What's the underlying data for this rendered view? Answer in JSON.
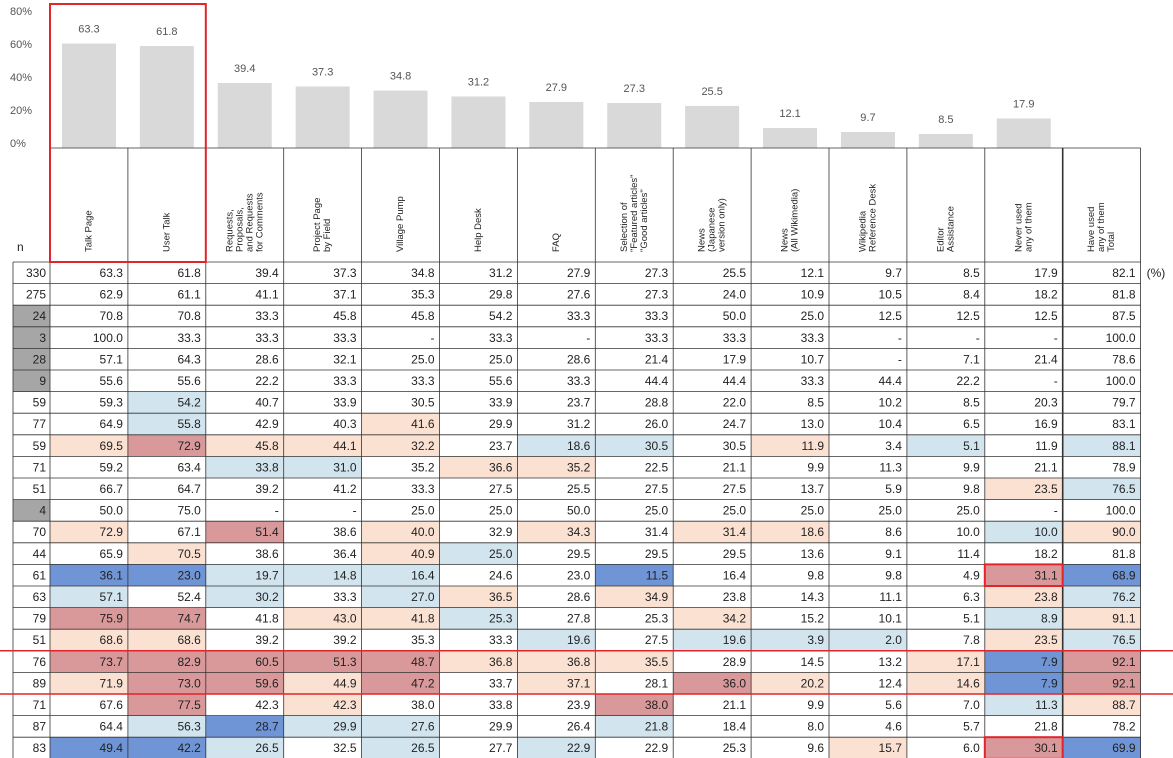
{
  "chart_data": {
    "type": "bar",
    "values": [
      63.3,
      61.8,
      39.4,
      37.3,
      34.8,
      31.2,
      27.9,
      27.3,
      25.5,
      12.1,
      9.7,
      8.5,
      17.9
    ],
    "color": "#d9d9d9",
    "ylim": [
      0,
      80
    ],
    "yticks": [
      {
        "value": 0,
        "label": "0%"
      },
      {
        "value": 20,
        "label": "20%"
      },
      {
        "value": 40,
        "label": "40%"
      },
      {
        "value": 60,
        "label": "60%"
      },
      {
        "value": 80,
        "label": "80%"
      }
    ]
  },
  "table": {
    "n_label": "n",
    "unit": "(%)",
    "colors": {
      "p": "#fbe1d2",
      "r": "#d9999a",
      "l": "#d2e5ef",
      "b": "#6f95d6",
      "g": "#a6a6a6"
    },
    "columns": [
      [
        "Talk Page"
      ],
      [
        "User Talk"
      ],
      [
        "Requests,",
        "Proposals,",
        "and Requests",
        "for Comments"
      ],
      [
        "Project Page",
        "by Field"
      ],
      [
        "Village Pump"
      ],
      [
        "Help Desk"
      ],
      [
        "FAQ"
      ],
      [
        "Selection of",
        "\"Featured articles\"",
        "\"Good articles\""
      ],
      [
        "News",
        "(Japanese",
        "version only)"
      ],
      [
        "News",
        "(All Wikimedia)"
      ],
      [
        "Wikipedia",
        "Reference Desk"
      ],
      [
        "Editor",
        "Assistance"
      ],
      [
        "Never used",
        "any of them"
      ],
      [
        "Have used",
        "any of them",
        "Total"
      ]
    ],
    "rows": [
      {
        "n": "330",
        "n_gray": false,
        "shade": "..............",
        "cells": [
          "63.3",
          "61.8",
          "39.4",
          "37.3",
          "34.8",
          "31.2",
          "27.9",
          "27.3",
          "25.5",
          "12.1",
          "9.7",
          "8.5",
          "17.9",
          "82.1"
        ]
      },
      {
        "n": "275",
        "n_gray": false,
        "shade": "..............",
        "cells": [
          "62.9",
          "61.1",
          "41.1",
          "37.1",
          "35.3",
          "29.8",
          "27.6",
          "27.3",
          "24.0",
          "10.9",
          "10.5",
          "8.4",
          "18.2",
          "81.8"
        ]
      },
      {
        "n": "24",
        "n_gray": true,
        "shade": "..............",
        "cells": [
          "70.8",
          "70.8",
          "33.3",
          "45.8",
          "45.8",
          "54.2",
          "33.3",
          "33.3",
          "50.0",
          "25.0",
          "12.5",
          "12.5",
          "12.5",
          "87.5"
        ]
      },
      {
        "n": "3",
        "n_gray": true,
        "shade": "..............",
        "cells": [
          "100.0",
          "33.3",
          "33.3",
          "33.3",
          "-",
          "33.3",
          "-",
          "33.3",
          "33.3",
          "33.3",
          "-",
          "-",
          "-",
          "100.0"
        ]
      },
      {
        "n": "28",
        "n_gray": true,
        "shade": "..............",
        "cells": [
          "57.1",
          "64.3",
          "28.6",
          "32.1",
          "25.0",
          "25.0",
          "28.6",
          "21.4",
          "17.9",
          "10.7",
          "-",
          "7.1",
          "21.4",
          "78.6"
        ]
      },
      {
        "n": "9",
        "n_gray": true,
        "shade": "..............",
        "cells": [
          "55.6",
          "55.6",
          "22.2",
          "33.3",
          "33.3",
          "55.6",
          "33.3",
          "44.4",
          "44.4",
          "33.3",
          "44.4",
          "22.2",
          "-",
          "100.0"
        ]
      },
      {
        "n": "59",
        "n_gray": false,
        "shade": ".l............",
        "cells": [
          "59.3",
          "54.2",
          "40.7",
          "33.9",
          "30.5",
          "33.9",
          "23.7",
          "28.8",
          "22.0",
          "8.5",
          "10.2",
          "8.5",
          "20.3",
          "79.7"
        ]
      },
      {
        "n": "77",
        "n_gray": false,
        "shade": ".l..p.........",
        "cells": [
          "64.9",
          "55.8",
          "42.9",
          "40.3",
          "41.6",
          "29.9",
          "31.2",
          "26.0",
          "24.7",
          "13.0",
          "10.4",
          "6.5",
          "16.9",
          "83.1"
        ]
      },
      {
        "n": "59",
        "n_gray": false,
        "shade": "prppp.ll.p.l.lp",
        "cells": [
          "69.5",
          "72.9",
          "45.8",
          "44.1",
          "32.2",
          "23.7",
          "18.6",
          "30.5",
          "30.5",
          "11.9",
          "3.4",
          "5.1",
          "11.9",
          "88.1"
        ]
      },
      {
        "n": "71",
        "n_gray": false,
        "shade": "..ll.pp.......",
        "cells": [
          "59.2",
          "63.4",
          "33.8",
          "31.0",
          "35.2",
          "36.6",
          "35.2",
          "22.5",
          "21.1",
          "9.9",
          "11.3",
          "9.9",
          "21.1",
          "78.9"
        ]
      },
      {
        "n": "51",
        "n_gray": false,
        "shade": "............pl",
        "cells": [
          "66.7",
          "64.7",
          "39.2",
          "41.2",
          "33.3",
          "27.5",
          "25.5",
          "27.5",
          "27.5",
          "13.7",
          "5.9",
          "9.8",
          "23.5",
          "76.5"
        ]
      },
      {
        "n": "4",
        "n_gray": true,
        "shade": "..............",
        "cells": [
          "50.0",
          "75.0",
          "-",
          "-",
          "25.0",
          "25.0",
          "50.0",
          "25.0",
          "25.0",
          "25.0",
          "25.0",
          "25.0",
          "-",
          "100.0"
        ]
      },
      {
        "n": "70",
        "n_gray": false,
        "shade": "p.r.p.p.pp..lp",
        "cells": [
          "72.9",
          "67.1",
          "51.4",
          "38.6",
          "40.0",
          "32.9",
          "34.3",
          "31.4",
          "31.4",
          "18.6",
          "8.6",
          "10.0",
          "10.0",
          "90.0"
        ]
      },
      {
        "n": "44",
        "n_gray": false,
        "shade": ".p..pl........",
        "cells": [
          "65.9",
          "70.5",
          "38.6",
          "36.4",
          "40.9",
          "25.0",
          "29.5",
          "29.5",
          "29.5",
          "13.6",
          "9.1",
          "11.4",
          "18.2",
          "81.8"
        ]
      },
      {
        "n": "61",
        "n_gray": false,
        "shade": "bblll..b....rb",
        "cells": [
          "36.1",
          "23.0",
          "19.7",
          "14.8",
          "16.4",
          "24.6",
          "23.0",
          "11.5",
          "16.4",
          "9.8",
          "9.8",
          "4.9",
          "31.1",
          "68.9"
        ]
      },
      {
        "n": "63",
        "n_gray": false,
        "shade": "l.l.lp.p....pl",
        "cells": [
          "57.1",
          "52.4",
          "30.2",
          "33.3",
          "27.0",
          "36.5",
          "28.6",
          "34.9",
          "23.8",
          "14.3",
          "11.1",
          "6.3",
          "23.8",
          "76.2"
        ]
      },
      {
        "n": "79",
        "n_gray": false,
        "shade": "rr.ppl..p...lp",
        "cells": [
          "75.9",
          "74.7",
          "41.8",
          "43.0",
          "41.8",
          "25.3",
          "27.8",
          "25.3",
          "34.2",
          "15.2",
          "10.1",
          "5.1",
          "8.9",
          "91.1"
        ]
      },
      {
        "n": "51",
        "n_gray": false,
        "shade": "pp....l.lll.pl",
        "cells": [
          "68.6",
          "68.6",
          "39.2",
          "39.2",
          "35.3",
          "33.3",
          "19.6",
          "27.5",
          "19.6",
          "3.9",
          "2.0",
          "7.8",
          "23.5",
          "76.5"
        ]
      },
      {
        "n": "76",
        "n_gray": false,
        "shade": "rrrrrppp...pbr",
        "cells": [
          "73.7",
          "82.9",
          "60.5",
          "51.3",
          "48.7",
          "36.8",
          "36.8",
          "35.5",
          "28.9",
          "14.5",
          "13.2",
          "17.1",
          "7.9",
          "92.1"
        ]
      },
      {
        "n": "89",
        "n_gray": false,
        "shade": "prrpr.p.rp.pbr",
        "cells": [
          "71.9",
          "73.0",
          "59.6",
          "44.9",
          "47.2",
          "33.7",
          "37.1",
          "28.1",
          "36.0",
          "20.2",
          "12.4",
          "14.6",
          "7.9",
          "92.1"
        ]
      },
      {
        "n": "71",
        "n_gray": false,
        "shade": ".r.p...r....lp",
        "cells": [
          "67.6",
          "77.5",
          "42.3",
          "42.3",
          "38.0",
          "33.8",
          "23.9",
          "38.0",
          "21.1",
          "9.9",
          "5.6",
          "7.0",
          "11.3",
          "88.7"
        ]
      },
      {
        "n": "87",
        "n_gray": false,
        "shade": ".lbll..l......",
        "cells": [
          "64.4",
          "56.3",
          "28.7",
          "29.9",
          "27.6",
          "29.9",
          "26.4",
          "21.8",
          "18.4",
          "8.0",
          "4.6",
          "5.7",
          "21.8",
          "78.2"
        ]
      },
      {
        "n": "83",
        "n_gray": false,
        "shade": "bbl.l.l...p.rb",
        "cells": [
          "49.4",
          "42.2",
          "26.5",
          "32.5",
          "26.5",
          "27.7",
          "22.9",
          "22.9",
          "25.3",
          "9.6",
          "15.7",
          "6.0",
          "30.1",
          "69.9"
        ]
      }
    ]
  }
}
